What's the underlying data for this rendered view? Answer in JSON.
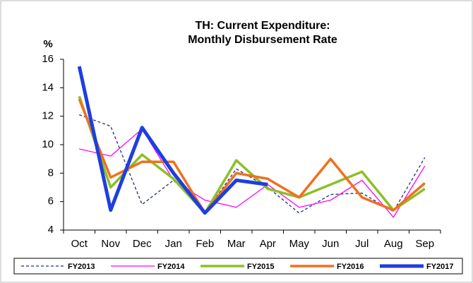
{
  "chart_data": {
    "type": "line",
    "title": [
      "TH: Current Expenditure:",
      "Monthly Disbursement Rate"
    ],
    "y_label": "%",
    "categories": [
      "Oct",
      "Nov",
      "Dec",
      "Jan",
      "Feb",
      "Mar",
      "Apr",
      "May",
      "Jun",
      "Jul",
      "Aug",
      "Sep"
    ],
    "series": [
      {
        "name": "FY2013",
        "color": "#1f2d7a",
        "dashed": true,
        "values": [
          12.1,
          11.3,
          5.8,
          7.5,
          5.2,
          8.3,
          7.0,
          5.2,
          6.5,
          6.6,
          5.3,
          9.1
        ]
      },
      {
        "name": "FY2014",
        "color": "#ff00ff",
        "values": [
          9.7,
          9.2,
          11.1,
          7.5,
          6.1,
          5.6,
          7.2,
          5.6,
          6.1,
          7.5,
          4.9,
          8.5
        ]
      },
      {
        "name": "FY2015",
        "color": "#8cbf26",
        "values": [
          13.4,
          7.0,
          9.3,
          7.6,
          5.2,
          8.9,
          6.9,
          6.3,
          7.2,
          8.1,
          5.4,
          6.9
        ]
      },
      {
        "name": "FY2016",
        "color": "#f26f1d",
        "values": [
          13.2,
          7.7,
          8.8,
          8.8,
          5.2,
          8.0,
          7.6,
          6.3,
          9.0,
          6.3,
          5.4,
          7.3
        ]
      },
      {
        "name": "FY2017",
        "color": "#1f3ee0",
        "values": [
          15.5,
          5.4,
          11.2,
          8.0,
          5.2,
          7.5,
          7.2,
          null,
          null,
          null,
          null,
          null
        ]
      }
    ],
    "ylim": [
      4,
      16
    ],
    "yticks": [
      4,
      6,
      8,
      10,
      12,
      14,
      16
    ],
    "grid": false,
    "legend": "bottom"
  }
}
